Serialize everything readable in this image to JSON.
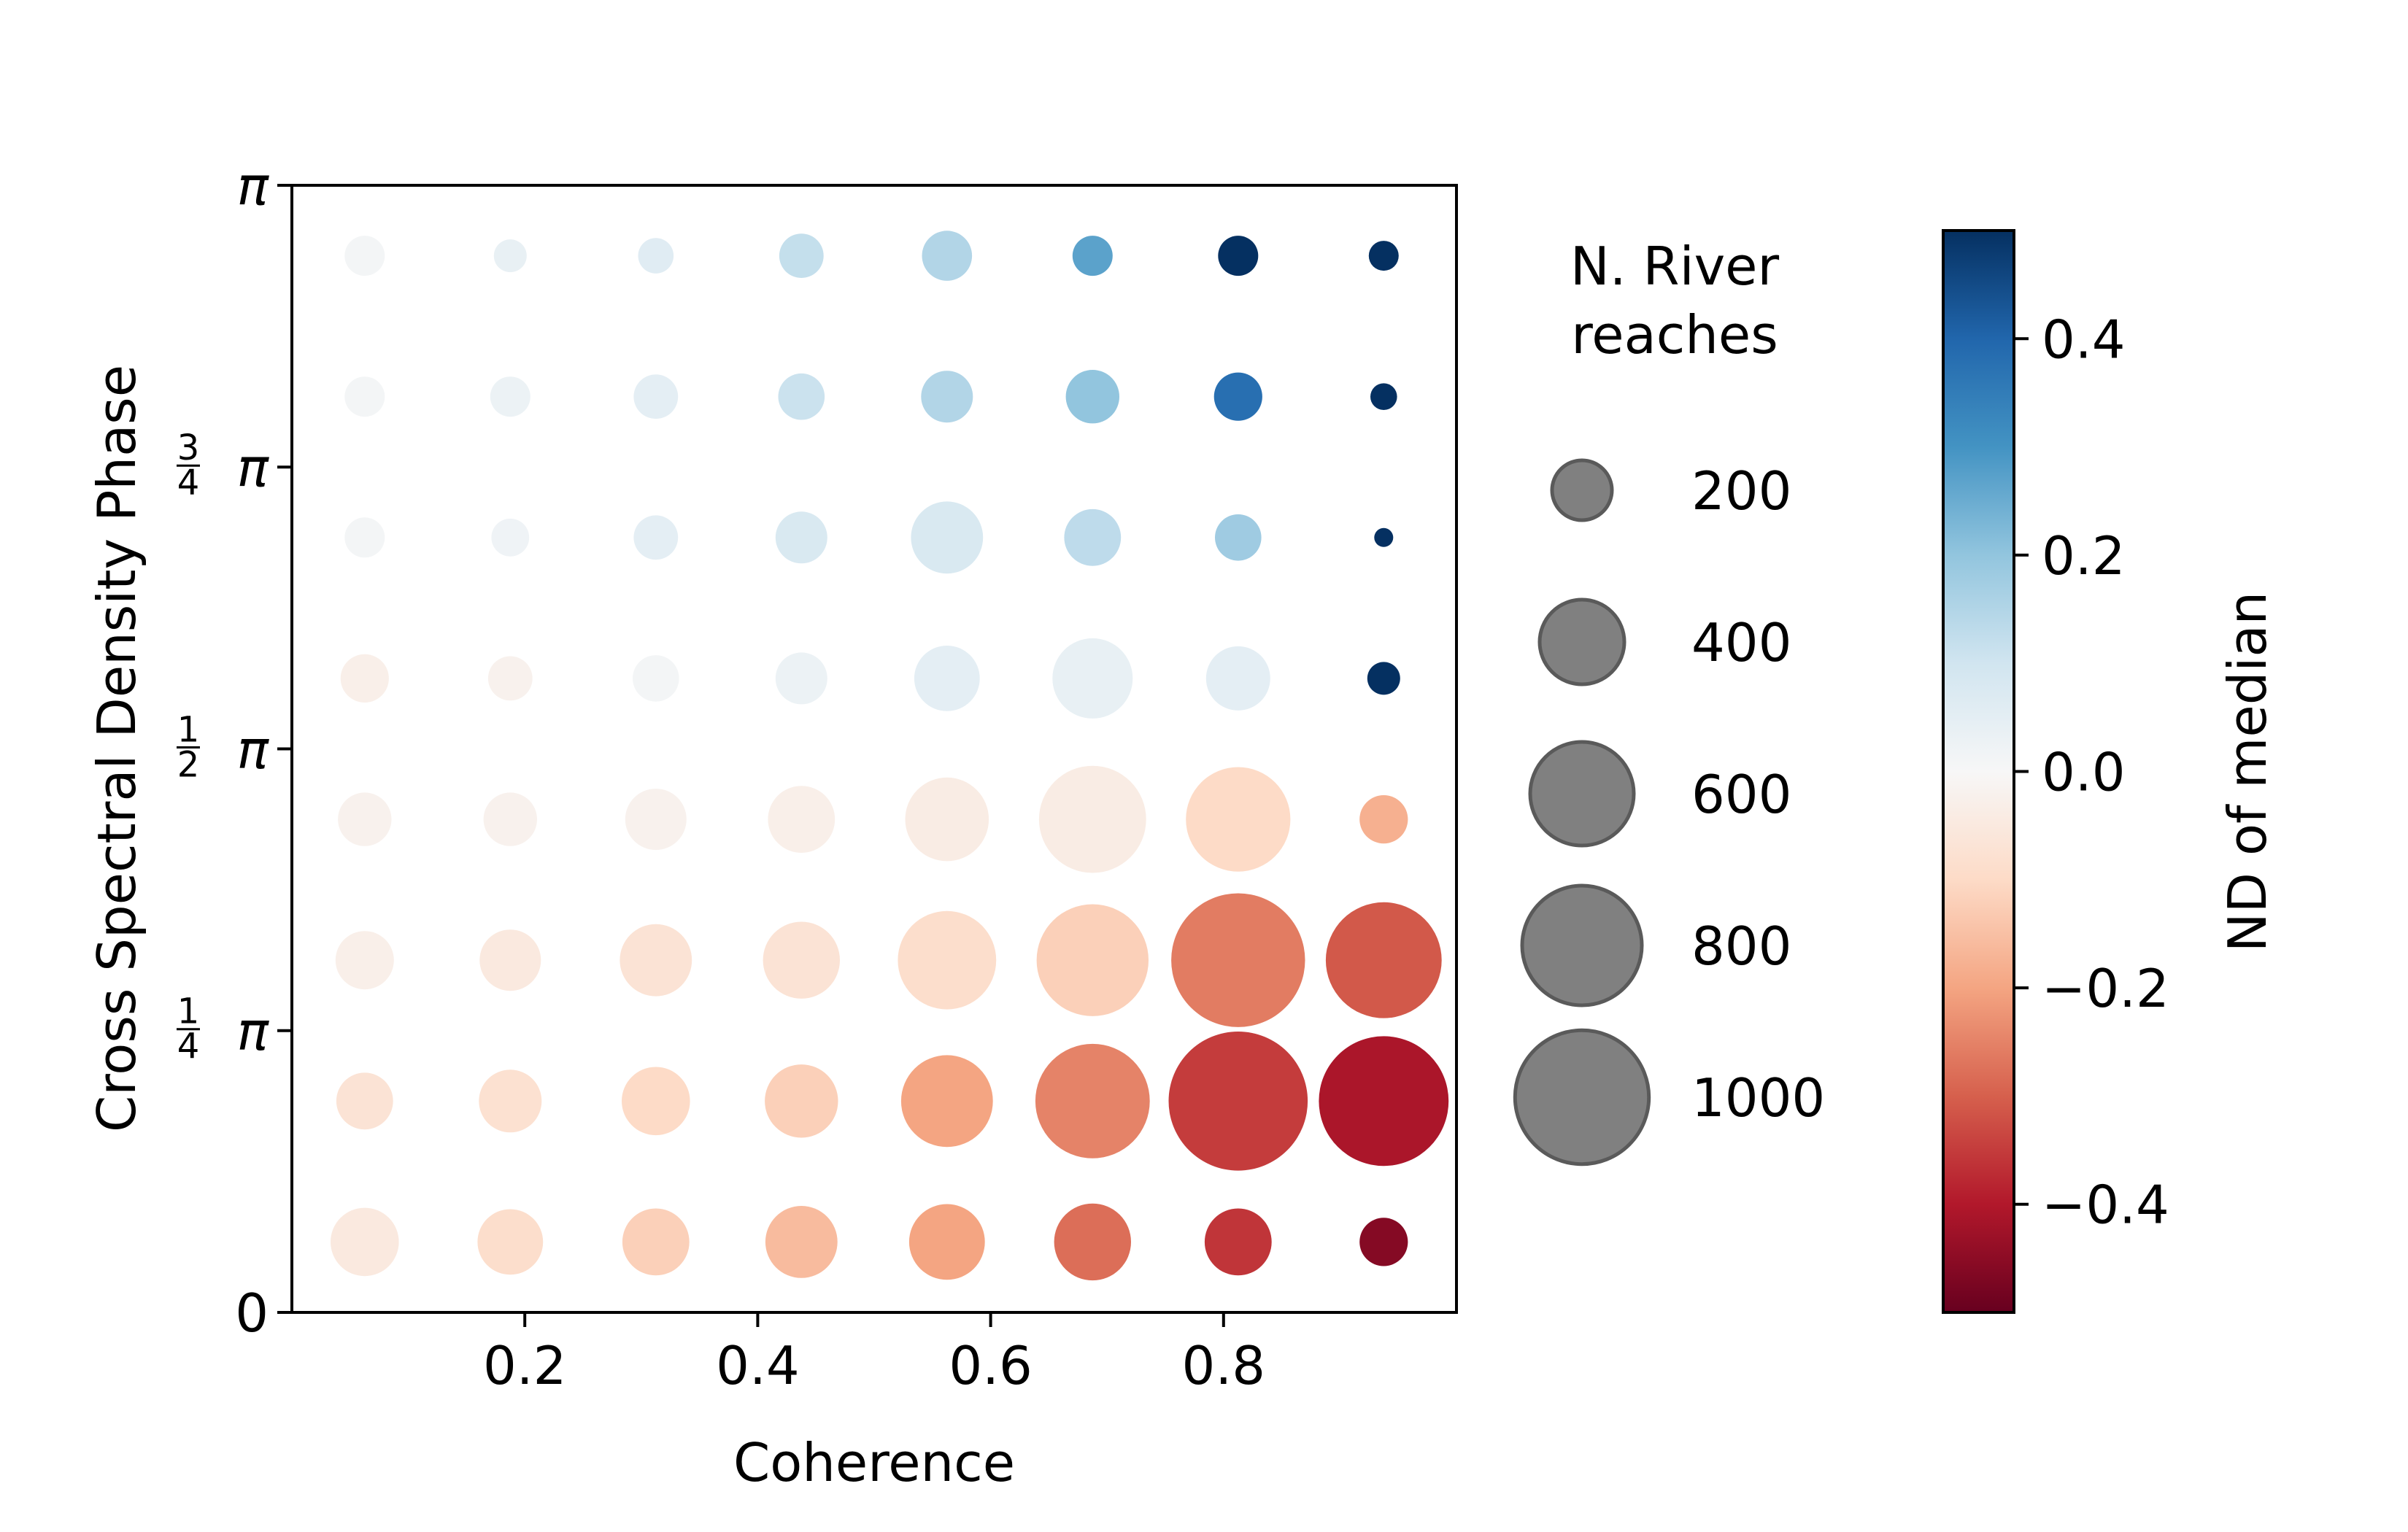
{
  "chart_data": {
    "type": "scatter",
    "title": "",
    "xlabel": "Coherence",
    "ylabel": "Cross Spectral Density Phase",
    "xlim": [
      0.0,
      1.0
    ],
    "ylim_radians": [
      0,
      3.14159265
    ],
    "x_ticks": [
      {
        "value": 0.2,
        "label": "0.2"
      },
      {
        "value": 0.4,
        "label": "0.4"
      },
      {
        "value": 0.6,
        "label": "0.6"
      },
      {
        "value": 0.8,
        "label": "0.8"
      }
    ],
    "y_ticks": [
      {
        "value": 0,
        "label": "0"
      },
      {
        "value": 0.7854,
        "num": "1",
        "den": "4",
        "sym": "π"
      },
      {
        "value": 1.5708,
        "num": "1",
        "den": "2",
        "sym": "π"
      },
      {
        "value": 2.3562,
        "num": "3",
        "den": "4",
        "sym": "π"
      },
      {
        "value": 3.1416,
        "label": "π"
      }
    ],
    "x": [
      0.0625,
      0.1875,
      0.3125,
      0.4375,
      0.5625,
      0.6875,
      0.8125,
      0.9375
    ],
    "y_radians": [
      0.19635,
      0.58905,
      0.98175,
      1.37445,
      1.76715,
      2.15984,
      2.55254,
      2.94524
    ],
    "size_rows": [
      [
        260,
        240,
        250,
        290,
        320,
        330,
        250,
        130
      ],
      [
        180,
        220,
        260,
        300,
        470,
        730,
        1080,
        940
      ],
      [
        190,
        210,
        290,
        330,
        540,
        700,
        1000,
        750
      ],
      [
        160,
        160,
        210,
        250,
        390,
        640,
        610,
        130
      ],
      [
        130,
        110,
        120,
        150,
        240,
        360,
        230,
        60
      ],
      [
        90,
        80,
        110,
        150,
        290,
        180,
        120,
        20
      ],
      [
        90,
        90,
        110,
        120,
        150,
        160,
        130,
        40
      ],
      [
        90,
        60,
        70,
        110,
        140,
        90,
        90,
        50
      ]
    ],
    "color_rows": [
      [
        -0.05,
        -0.09,
        -0.12,
        -0.16,
        -0.2,
        -0.28,
        -0.36,
        -0.46
      ],
      [
        -0.07,
        -0.08,
        -0.1,
        -0.12,
        -0.2,
        -0.25,
        -0.35,
        -0.41
      ],
      [
        -0.03,
        -0.05,
        -0.07,
        -0.07,
        -0.09,
        -0.12,
        -0.26,
        -0.31
      ],
      [
        -0.02,
        -0.02,
        -0.02,
        -0.03,
        -0.04,
        -0.04,
        -0.1,
        -0.18
      ],
      [
        -0.03,
        -0.02,
        0.01,
        0.03,
        0.05,
        0.04,
        0.05,
        0.5
      ],
      [
        0.01,
        0.02,
        0.05,
        0.08,
        0.08,
        0.13,
        0.18,
        0.5
      ],
      [
        0.01,
        0.03,
        0.05,
        0.11,
        0.15,
        0.2,
        0.38,
        0.5
      ],
      [
        0.01,
        0.04,
        0.06,
        0.12,
        0.15,
        0.27,
        0.5,
        0.5
      ]
    ],
    "size_legend": {
      "title_lines": [
        "N. River",
        "reaches"
      ],
      "entries": [
        {
          "value": 200,
          "label": "200"
        },
        {
          "value": 400,
          "label": "400"
        },
        {
          "value": 600,
          "label": "600"
        },
        {
          "value": 800,
          "label": "800"
        },
        {
          "value": 1000,
          "label": "1000"
        }
      ]
    },
    "colorbar": {
      "label": "ND of median",
      "colormap": "RdBu",
      "range": [
        -0.5,
        0.5
      ],
      "ticks": [
        {
          "value": 0.4,
          "label": "0.4"
        },
        {
          "value": 0.2,
          "label": "0.2"
        },
        {
          "value": 0.0,
          "label": "0.0"
        },
        {
          "value": -0.2,
          "label": "−0.2"
        },
        {
          "value": -0.4,
          "label": "−0.4"
        }
      ]
    },
    "grid": false
  }
}
